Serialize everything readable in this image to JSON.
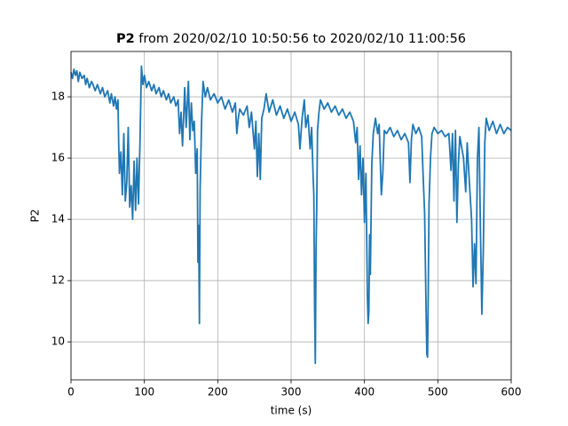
{
  "chart_data": {
    "type": "line",
    "title_bold": "P2",
    "title": "from 2020/02/10 10:50:56 to 2020/02/10 11:00:56",
    "x_label": "time (s)",
    "y_label": "P2",
    "xlim": [
      0,
      600
    ],
    "ylim": [
      8.76,
      19.48
    ],
    "xticks": [
      0,
      100,
      200,
      300,
      400,
      500,
      600
    ],
    "yticks": [
      10,
      12,
      14,
      16,
      18
    ],
    "grid": true,
    "x": [
      0,
      2,
      4,
      6,
      8,
      10,
      12,
      15,
      18,
      20,
      22,
      25,
      28,
      30,
      33,
      36,
      40,
      43,
      46,
      50,
      53,
      55,
      58,
      60,
      62,
      64,
      65,
      66,
      68,
      70,
      72,
      74,
      76,
      78,
      80,
      82,
      84,
      86,
      88,
      90,
      92,
      94,
      96,
      98,
      100,
      103,
      106,
      110,
      113,
      116,
      120,
      123,
      126,
      130,
      133,
      136,
      140,
      143,
      146,
      148,
      150,
      152,
      155,
      157,
      160,
      162,
      164,
      166,
      168,
      170,
      172,
      173,
      174,
      175,
      176,
      178,
      180,
      183,
      186,
      190,
      195,
      200,
      205,
      210,
      215,
      220,
      224,
      226,
      228,
      230,
      235,
      240,
      243,
      246,
      250,
      252,
      254,
      256,
      258,
      260,
      263,
      266,
      270,
      275,
      280,
      285,
      290,
      295,
      300,
      305,
      310,
      312,
      315,
      318,
      320,
      323,
      326,
      328,
      330,
      331,
      332,
      333,
      334,
      335,
      336,
      338,
      340,
      345,
      350,
      355,
      360,
      365,
      370,
      375,
      380,
      385,
      388,
      390,
      392,
      394,
      396,
      398,
      400,
      402,
      404,
      405,
      406,
      407,
      408,
      410,
      412,
      415,
      418,
      420,
      423,
      425,
      427,
      430,
      435,
      440,
      445,
      450,
      455,
      460,
      462,
      464,
      466,
      470,
      474,
      478,
      480,
      482,
      483,
      484,
      485,
      486,
      487,
      488,
      490,
      492,
      495,
      500,
      505,
      510,
      515,
      518,
      520,
      522,
      524,
      526,
      528,
      530,
      535,
      538,
      540,
      543,
      546,
      548,
      550,
      552,
      554,
      556,
      558,
      560,
      562,
      564,
      566,
      570,
      575,
      580,
      585,
      590,
      595,
      600
    ],
    "series": [
      {
        "name": "P2",
        "color": "#1f77b4",
        "values": [
          18.8,
          18.6,
          18.9,
          18.7,
          18.85,
          18.5,
          18.8,
          18.6,
          18.7,
          18.4,
          18.6,
          18.3,
          18.5,
          18.4,
          18.2,
          18.4,
          18.1,
          18.3,
          18.0,
          18.2,
          17.8,
          18.1,
          17.7,
          18.0,
          17.6,
          17.9,
          16.5,
          15.5,
          16.2,
          14.8,
          16.8,
          14.6,
          15.2,
          17.0,
          14.4,
          15.1,
          14.0,
          15.9,
          14.3,
          16.0,
          14.5,
          16.5,
          19.0,
          18.4,
          18.7,
          18.3,
          18.5,
          18.2,
          18.4,
          18.1,
          18.3,
          18.0,
          18.2,
          17.9,
          18.1,
          17.8,
          18.0,
          17.7,
          17.9,
          16.8,
          17.5,
          16.4,
          18.3,
          17.0,
          18.5,
          16.6,
          17.8,
          16.9,
          17.2,
          15.5,
          16.3,
          12.6,
          13.8,
          10.6,
          15.0,
          17.2,
          18.5,
          18.0,
          18.3,
          17.9,
          18.1,
          17.8,
          18.0,
          17.6,
          17.9,
          17.5,
          17.8,
          16.8,
          17.3,
          17.6,
          17.4,
          17.7,
          17.0,
          17.5,
          16.3,
          17.2,
          15.4,
          16.8,
          15.3,
          17.3,
          17.6,
          18.1,
          17.5,
          17.9,
          17.4,
          17.7,
          17.3,
          17.6,
          17.2,
          17.5,
          17.1,
          16.3,
          17.3,
          17.9,
          17.0,
          17.4,
          16.3,
          17.0,
          15.4,
          14.8,
          11.2,
          9.3,
          13.0,
          14.5,
          16.9,
          17.5,
          17.9,
          17.6,
          17.8,
          17.5,
          17.7,
          17.4,
          17.6,
          17.3,
          17.5,
          17.2,
          16.5,
          17.0,
          15.3,
          16.4,
          14.8,
          16.0,
          13.9,
          15.5,
          11.5,
          10.6,
          11.0,
          13.5,
          12.2,
          15.8,
          16.8,
          17.3,
          16.8,
          17.1,
          14.8,
          15.5,
          16.9,
          16.8,
          17.0,
          16.7,
          16.9,
          16.6,
          16.8,
          16.5,
          15.2,
          16.6,
          17.1,
          16.8,
          17.0,
          16.7,
          15.4,
          14.2,
          12.6,
          11.0,
          9.6,
          9.5,
          11.8,
          14.5,
          16.0,
          16.8,
          17.0,
          16.8,
          16.9,
          16.7,
          16.8,
          15.6,
          16.8,
          14.6,
          16.9,
          13.9,
          15.8,
          16.7,
          16.0,
          14.9,
          16.5,
          15.2,
          14.0,
          11.8,
          13.2,
          11.9,
          16.0,
          17.0,
          13.8,
          10.9,
          13.0,
          16.5,
          17.3,
          16.9,
          17.2,
          16.8,
          17.1,
          16.8,
          17.0,
          16.9
        ]
      }
    ]
  }
}
